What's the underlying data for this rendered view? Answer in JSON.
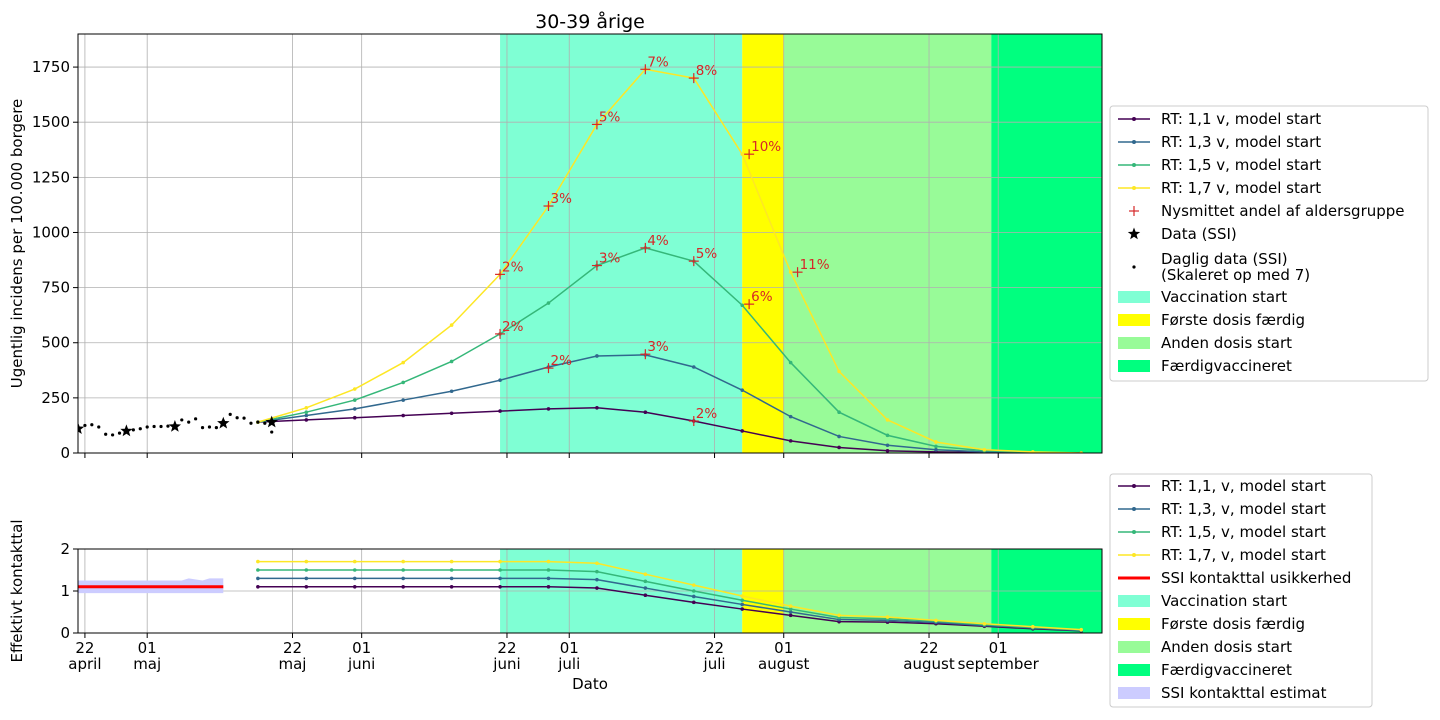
{
  "colors": {
    "rt11": "#440154",
    "rt13": "#31688e",
    "rt15": "#35b779",
    "rt17": "#fde725",
    "marker": "#d62728",
    "vacc_start": "#7fffd4",
    "first_done": "#ffff00",
    "second_start": "#98fb98",
    "fully": "#00ff7f",
    "ssi_band": "#ccccff",
    "ssi_line": "#ff0000"
  },
  "chart_data": [
    {
      "type": "line",
      "title": "30-39 årige",
      "xlabel": "",
      "ylabel": "Ugentlig incidens per 100.000 borgere",
      "xlim": [
        "2021-04-21",
        "2021-09-16"
      ],
      "ylim": [
        0,
        1900
      ],
      "yticks": [
        0,
        250,
        500,
        750,
        1000,
        1250,
        1500,
        1750
      ],
      "xticks": [
        {
          "date": "2021-04-22",
          "label": ""
        },
        {
          "date": "2021-05-01",
          "label": ""
        },
        {
          "date": "2021-05-22",
          "label": ""
        },
        {
          "date": "2021-06-01",
          "label": ""
        },
        {
          "date": "2021-06-22",
          "label": ""
        },
        {
          "date": "2021-07-01",
          "label": ""
        },
        {
          "date": "2021-07-22",
          "label": ""
        },
        {
          "date": "2021-08-01",
          "label": ""
        },
        {
          "date": "2021-08-22",
          "label": ""
        },
        {
          "date": "2021-09-01",
          "label": ""
        }
      ],
      "grid": true,
      "legend_placement": "right",
      "spans": [
        {
          "name": "Vaccination start",
          "from": "2021-06-21",
          "to": "2021-07-26",
          "color": "#7fffd4"
        },
        {
          "name": "Første dosis færdig",
          "from": "2021-07-26",
          "to": "2021-08-01",
          "color": "#ffff00"
        },
        {
          "name": "Anden dosis start",
          "from": "2021-08-01",
          "to": "2021-08-31",
          "color": "#98fb98"
        },
        {
          "name": "Færdigvaccineret",
          "from": "2021-08-31",
          "to": "2021-09-16",
          "color": "#00ff7f"
        }
      ],
      "x": [
        "2021-05-17",
        "2021-05-24",
        "2021-05-31",
        "2021-06-07",
        "2021-06-14",
        "2021-06-21",
        "2021-06-28",
        "2021-07-05",
        "2021-07-12",
        "2021-07-19",
        "2021-07-26",
        "2021-08-02",
        "2021-08-09",
        "2021-08-16",
        "2021-08-23",
        "2021-08-30",
        "2021-09-06",
        "2021-09-13"
      ],
      "series": [
        {
          "name": "RT: 1,1 v, model start",
          "color": "#440154",
          "values": [
            140,
            150,
            160,
            170,
            180,
            190,
            200,
            205,
            185,
            145,
            100,
            55,
            25,
            10,
            5,
            2,
            1,
            0
          ]
        },
        {
          "name": "RT: 1,3 v, model start",
          "color": "#31688e",
          "values": [
            140,
            170,
            200,
            240,
            280,
            330,
            390,
            440,
            445,
            390,
            285,
            165,
            75,
            35,
            15,
            5,
            2,
            0
          ]
        },
        {
          "name": "RT: 1,5 v, model start",
          "color": "#35b779",
          "values": [
            140,
            185,
            240,
            320,
            415,
            540,
            680,
            850,
            930,
            870,
            670,
            410,
            185,
            80,
            30,
            10,
            3,
            0
          ]
        },
        {
          "name": "RT: 1,7 v, model start",
          "color": "#fde725",
          "values": [
            140,
            205,
            290,
            410,
            580,
            810,
            1120,
            1490,
            1740,
            1700,
            1355,
            820,
            370,
            150,
            50,
            15,
            5,
            0
          ]
        }
      ],
      "share_markers": {
        "name": "Nysmittet andel af aldersgruppe",
        "points": [
          {
            "x": "2021-06-21",
            "y": 810,
            "label": "2%"
          },
          {
            "x": "2021-06-28",
            "y": 1120,
            "label": "3%"
          },
          {
            "x": "2021-07-05",
            "y": 1490,
            "label": "5%"
          },
          {
            "x": "2021-07-12",
            "y": 1740,
            "label": "7%"
          },
          {
            "x": "2021-07-19",
            "y": 1700,
            "label": "8%"
          },
          {
            "x": "2021-07-27",
            "y": 1355,
            "label": "10%"
          },
          {
            "x": "2021-08-03",
            "y": 820,
            "label": "11%"
          },
          {
            "x": "2021-06-21",
            "y": 540,
            "label": "2%"
          },
          {
            "x": "2021-07-05",
            "y": 850,
            "label": "3%"
          },
          {
            "x": "2021-07-12",
            "y": 930,
            "label": "4%"
          },
          {
            "x": "2021-07-19",
            "y": 870,
            "label": "5%"
          },
          {
            "x": "2021-07-27",
            "y": 675,
            "label": "6%"
          },
          {
            "x": "2021-06-28",
            "y": 385,
            "label": "2%"
          },
          {
            "x": "2021-07-12",
            "y": 448,
            "label": "3%"
          },
          {
            "x": "2021-07-19",
            "y": 145,
            "label": "2%"
          }
        ]
      },
      "weekly_data": {
        "name": "Data (SSI)",
        "x": [
          "2021-04-21",
          "2021-04-28",
          "2021-05-05",
          "2021-05-12",
          "2021-05-19"
        ],
        "values": [
          110,
          100,
          120,
          135,
          140
        ]
      },
      "daily_data": {
        "name": "Daglig data (SSI)\n(Skaleret op med 7)",
        "x": [
          "2021-04-21",
          "2021-04-22",
          "2021-04-23",
          "2021-04-24",
          "2021-04-25",
          "2021-04-26",
          "2021-04-27",
          "2021-04-28",
          "2021-04-29",
          "2021-04-30",
          "2021-05-01",
          "2021-05-02",
          "2021-05-03",
          "2021-05-04",
          "2021-05-05",
          "2021-05-06",
          "2021-05-07",
          "2021-05-08",
          "2021-05-09",
          "2021-05-10",
          "2021-05-11",
          "2021-05-12",
          "2021-05-13",
          "2021-05-14",
          "2021-05-15",
          "2021-05-16",
          "2021-05-17",
          "2021-05-18",
          "2021-05-19"
        ],
        "values": [
          110,
          125,
          128,
          118,
          85,
          82,
          90,
          100,
          105,
          110,
          118,
          120,
          120,
          122,
          125,
          150,
          140,
          155,
          115,
          118,
          115,
          145,
          175,
          160,
          158,
          135,
          140,
          135,
          95
        ]
      },
      "legend": [
        "RT: 1,1 v, model start",
        "RT: 1,3 v, model start",
        "RT: 1,5 v, model start",
        "RT: 1,7 v, model start",
        "Nysmittet andel af aldersgruppe",
        "Data (SSI)",
        "Daglig data (SSI)",
        "(Skaleret op med 7)",
        "Vaccination start",
        "Første dosis færdig",
        "Anden dosis start",
        "Færdigvaccineret"
      ]
    },
    {
      "type": "line",
      "title": "",
      "xlabel": "Dato",
      "ylabel": "Effektivt kontakttal",
      "xlim": [
        "2021-04-21",
        "2021-09-16"
      ],
      "ylim": [
        0,
        2
      ],
      "yticks": [
        0,
        1,
        2
      ],
      "xticks": [
        {
          "date": "2021-04-22",
          "line1": "22",
          "line2": "april"
        },
        {
          "date": "2021-05-01",
          "line1": "01",
          "line2": "maj"
        },
        {
          "date": "2021-05-22",
          "line1": "22",
          "line2": "maj"
        },
        {
          "date": "2021-06-01",
          "line1": "01",
          "line2": "juni"
        },
        {
          "date": "2021-06-22",
          "line1": "22",
          "line2": "juni"
        },
        {
          "date": "2021-07-01",
          "line1": "01",
          "line2": "juli"
        },
        {
          "date": "2021-07-22",
          "line1": "22",
          "line2": "juli"
        },
        {
          "date": "2021-08-01",
          "line1": "01",
          "line2": "august"
        },
        {
          "date": "2021-08-22",
          "line1": "22",
          "line2": "august"
        },
        {
          "date": "2021-09-01",
          "line1": "01",
          "line2": "september"
        }
      ],
      "grid": true,
      "legend_placement": "right",
      "spans": [
        {
          "name": "Vaccination start",
          "from": "2021-06-21",
          "to": "2021-07-26",
          "color": "#7fffd4"
        },
        {
          "name": "Første dosis færdig",
          "from": "2021-07-26",
          "to": "2021-08-01",
          "color": "#ffff00"
        },
        {
          "name": "Anden dosis start",
          "from": "2021-08-01",
          "to": "2021-08-31",
          "color": "#98fb98"
        },
        {
          "name": "Færdigvaccineret",
          "from": "2021-08-31",
          "to": "2021-09-16",
          "color": "#00ff7f"
        }
      ],
      "x": [
        "2021-05-17",
        "2021-05-24",
        "2021-05-31",
        "2021-06-07",
        "2021-06-14",
        "2021-06-21",
        "2021-06-28",
        "2021-07-05",
        "2021-07-12",
        "2021-07-19",
        "2021-07-26",
        "2021-08-02",
        "2021-08-09",
        "2021-08-16",
        "2021-08-23",
        "2021-08-30",
        "2021-09-06",
        "2021-09-13"
      ],
      "series": [
        {
          "name": "RT: 1,1, v, model start",
          "color": "#440154",
          "values": [
            1.1,
            1.1,
            1.1,
            1.1,
            1.1,
            1.1,
            1.1,
            1.07,
            0.9,
            0.73,
            0.57,
            0.42,
            0.27,
            0.26,
            0.22,
            0.16,
            0.1,
            0.05
          ]
        },
        {
          "name": "RT: 1,3, v, model start",
          "color": "#31688e",
          "values": [
            1.3,
            1.3,
            1.3,
            1.3,
            1.3,
            1.3,
            1.3,
            1.27,
            1.07,
            0.87,
            0.68,
            0.5,
            0.32,
            0.3,
            0.25,
            0.18,
            0.12,
            0.06
          ]
        },
        {
          "name": "RT: 1,5, v, model start",
          "color": "#35b779",
          "values": [
            1.5,
            1.5,
            1.5,
            1.5,
            1.5,
            1.5,
            1.5,
            1.46,
            1.23,
            1.0,
            0.78,
            0.57,
            0.37,
            0.34,
            0.28,
            0.2,
            0.13,
            0.07
          ]
        },
        {
          "name": "RT: 1,7, v, model start",
          "color": "#fde725",
          "values": [
            1.7,
            1.7,
            1.7,
            1.7,
            1.7,
            1.7,
            1.7,
            1.66,
            1.4,
            1.14,
            0.88,
            0.64,
            0.42,
            0.38,
            0.3,
            0.22,
            0.15,
            0.08
          ]
        }
      ],
      "ssi_estimate": {
        "name": "SSI kontakttal usikkerhed",
        "band_name": "SSI kontakttal estimat",
        "x": [
          "2021-04-21",
          "2021-05-05",
          "2021-05-06",
          "2021-05-07",
          "2021-05-09",
          "2021-05-10",
          "2021-05-12"
        ],
        "values": [
          1.1,
          1.1,
          1.1,
          1.1,
          1.1,
          1.1,
          1.1
        ],
        "lower": [
          0.95,
          0.95,
          0.95,
          0.95,
          0.95,
          0.95,
          0.95
        ],
        "upper": [
          1.25,
          1.25,
          1.25,
          1.3,
          1.25,
          1.3,
          1.3
        ]
      },
      "legend": [
        "RT: 1,1, v, model start",
        "RT: 1,3, v, model start",
        "RT: 1,5, v, model start",
        "RT: 1,7, v, model start",
        "SSI kontakttal usikkerhed",
        "Vaccination start",
        "Første dosis færdig",
        "Anden dosis start",
        "Færdigvaccineret",
        "SSI kontakttal estimat"
      ]
    }
  ]
}
